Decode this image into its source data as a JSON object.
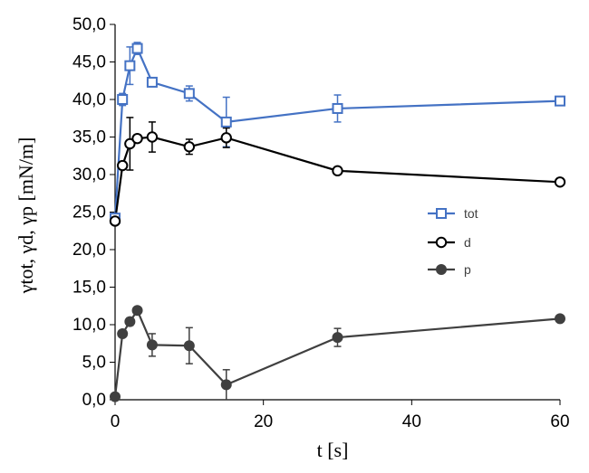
{
  "chart_data": {
    "type": "scatter",
    "xlabel": "t [s]",
    "ylabel": "γtot, γd, γp [mN/m]",
    "xlim": [
      0,
      60
    ],
    "ylim": [
      0,
      50
    ],
    "xticks": [
      0,
      20,
      40,
      60
    ],
    "yticks": [
      0,
      5,
      10,
      15,
      20,
      25,
      30,
      35,
      40,
      45,
      50
    ],
    "xtick_labels": [
      "0",
      "20",
      "40",
      "60"
    ],
    "ytick_labels": [
      "0,0",
      "5,0",
      "10,0",
      "15,0",
      "20,0",
      "25,0",
      "30,0",
      "35,0",
      "40,0",
      "45,0",
      "50,0"
    ],
    "grid": false,
    "legend_position": "right-center",
    "series": [
      {
        "name": "tot",
        "color": "#4472c4",
        "marker": "open-square",
        "x": [
          0,
          1,
          2,
          3,
          5,
          10,
          15,
          30,
          60
        ],
        "y": [
          24.2,
          40.0,
          44.5,
          46.8,
          42.3,
          40.8,
          37.0,
          38.8,
          39.8
        ],
        "error": [
          0.5,
          0.8,
          2.5,
          0.8,
          0.5,
          1.0,
          3.3,
          1.8,
          0.5
        ]
      },
      {
        "name": "d",
        "color": "#000000",
        "marker": "open-circle",
        "x": [
          0,
          1,
          2,
          3,
          5,
          10,
          15,
          30,
          60
        ],
        "y": [
          23.8,
          31.2,
          34.1,
          34.8,
          35.0,
          33.7,
          34.9,
          30.5,
          29.0
        ],
        "error": [
          0.5,
          0.5,
          3.5,
          0.5,
          2.0,
          1.0,
          1.3,
          0.5,
          0.3
        ]
      },
      {
        "name": "p",
        "color": "#404040",
        "marker": "filled-circle",
        "x": [
          0,
          1,
          2,
          3,
          5,
          10,
          15,
          30,
          60
        ],
        "y": [
          0.4,
          8.8,
          10.4,
          11.9,
          7.3,
          7.2,
          2.0,
          8.3,
          10.8
        ],
        "error": [
          0.2,
          0.3,
          0.5,
          0.3,
          1.5,
          2.4,
          2.0,
          1.2,
          0.3
        ]
      }
    ]
  }
}
